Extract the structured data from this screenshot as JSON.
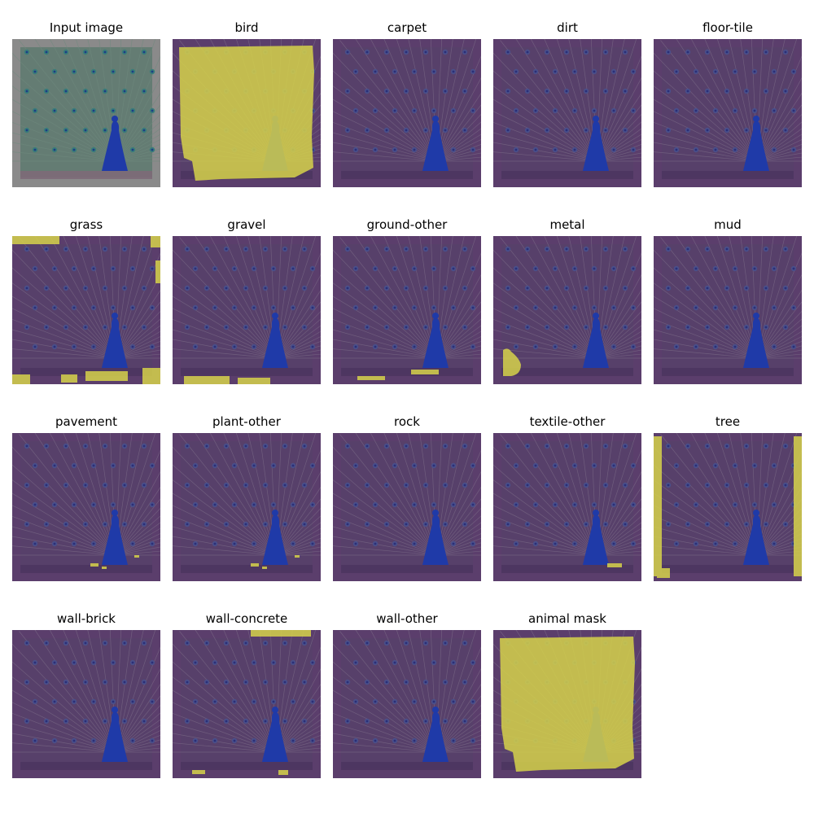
{
  "figure": {
    "panels": [
      {
        "title": "Input image",
        "kind": "input",
        "mask": "none"
      },
      {
        "title": "bird",
        "kind": "overlay",
        "mask": "bird"
      },
      {
        "title": "carpet",
        "kind": "overlay",
        "mask": "none"
      },
      {
        "title": "dirt",
        "kind": "overlay",
        "mask": "none"
      },
      {
        "title": "floor-tile",
        "kind": "overlay",
        "mask": "none"
      },
      {
        "title": "grass",
        "kind": "overlay",
        "mask": "grass"
      },
      {
        "title": "gravel",
        "kind": "overlay",
        "mask": "gravel"
      },
      {
        "title": "ground-other",
        "kind": "overlay",
        "mask": "ground"
      },
      {
        "title": "metal",
        "kind": "overlay",
        "mask": "metal"
      },
      {
        "title": "mud",
        "kind": "overlay",
        "mask": "none"
      },
      {
        "title": "pavement",
        "kind": "overlay",
        "mask": "specks"
      },
      {
        "title": "plant-other",
        "kind": "overlay",
        "mask": "specks"
      },
      {
        "title": "rock",
        "kind": "overlay",
        "mask": "none"
      },
      {
        "title": "textile-other",
        "kind": "overlay",
        "mask": "textile"
      },
      {
        "title": "tree",
        "kind": "overlay",
        "mask": "tree"
      },
      {
        "title": "wall-brick",
        "kind": "overlay",
        "mask": "none"
      },
      {
        "title": "wall-concrete",
        "kind": "overlay",
        "mask": "concrete"
      },
      {
        "title": "wall-other",
        "kind": "overlay",
        "mask": "none"
      },
      {
        "title": "animal mask",
        "kind": "overlay",
        "mask": "bird"
      }
    ],
    "colors": {
      "overlay_bg": "#5b3e6c",
      "overlay_feather": "#7a6a86",
      "mask_yellow": "#d6d24a",
      "body_blue": "#1f3aa8",
      "input_bg": "#8a8a8a",
      "input_feather": "#6f8a7e"
    }
  }
}
